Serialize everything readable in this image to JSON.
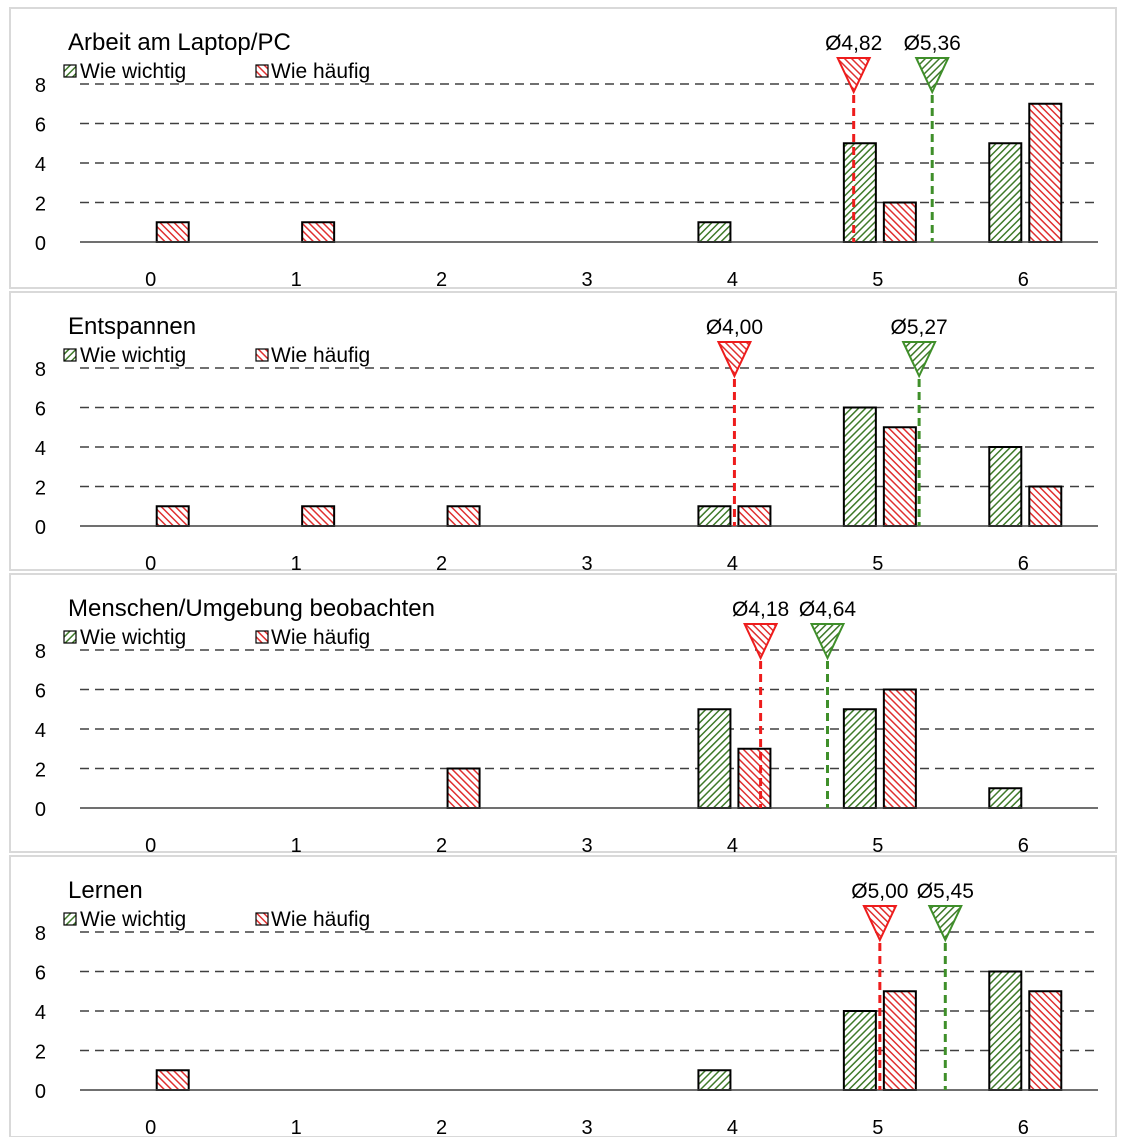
{
  "legend": {
    "wichtig_label": "Wie wichtig",
    "haeufig_label": "Wie häufig"
  },
  "colors": {
    "wichtig": "#3f7a2a",
    "haeufig": "#e03030",
    "wichtig_line": "#3f8f2a",
    "haeufig_line": "#ee1c1c",
    "grid": "#404040",
    "border": "#d9d9d9"
  },
  "chart_data": [
    {
      "type": "bar",
      "title": "Arbeit am Laptop/PC",
      "categories": [
        "0",
        "1",
        "2",
        "3",
        "4",
        "5",
        "6"
      ],
      "ylim": [
        0,
        8
      ],
      "yticks": [
        "0",
        "2",
        "4",
        "6",
        "8"
      ],
      "grid": true,
      "legend_position": "top-left",
      "series": [
        {
          "name": "Wie wichtig",
          "values": [
            0,
            0,
            0,
            0,
            1,
            5,
            5
          ]
        },
        {
          "name": "Wie häufig",
          "values": [
            1,
            1,
            0,
            0,
            0,
            2,
            7
          ]
        }
      ],
      "means": [
        {
          "series": "Wie häufig",
          "value": 4.82,
          "label": "Ø4,82"
        },
        {
          "series": "Wie wichtig",
          "value": 5.36,
          "label": "Ø5,36"
        }
      ]
    },
    {
      "type": "bar",
      "title": "Entspannen",
      "categories": [
        "0",
        "1",
        "2",
        "3",
        "4",
        "5",
        "6"
      ],
      "ylim": [
        0,
        8
      ],
      "yticks": [
        "0",
        "2",
        "4",
        "6",
        "8"
      ],
      "grid": true,
      "legend_position": "top-left",
      "series": [
        {
          "name": "Wie wichtig",
          "values": [
            0,
            0,
            0,
            0,
            1,
            6,
            4
          ]
        },
        {
          "name": "Wie häufig",
          "values": [
            1,
            1,
            1,
            0,
            1,
            5,
            2
          ]
        }
      ],
      "means": [
        {
          "series": "Wie häufig",
          "value": 4.0,
          "label": "Ø4,00"
        },
        {
          "series": "Wie wichtig",
          "value": 5.27,
          "label": "Ø5,27"
        }
      ]
    },
    {
      "type": "bar",
      "title": "Menschen/Umgebung beobachten",
      "categories": [
        "0",
        "1",
        "2",
        "3",
        "4",
        "5",
        "6"
      ],
      "ylim": [
        0,
        8
      ],
      "yticks": [
        "0",
        "2",
        "4",
        "6",
        "8"
      ],
      "grid": true,
      "legend_position": "top-left",
      "series": [
        {
          "name": "Wie wichtig",
          "values": [
            0,
            0,
            0,
            0,
            5,
            5,
            1
          ]
        },
        {
          "name": "Wie häufig",
          "values": [
            0,
            0,
            2,
            0,
            3,
            6,
            0
          ]
        }
      ],
      "means": [
        {
          "series": "Wie häufig",
          "value": 4.18,
          "label": "Ø4,18"
        },
        {
          "series": "Wie wichtig",
          "value": 4.64,
          "label": "Ø4,64"
        }
      ]
    },
    {
      "type": "bar",
      "title": "Lernen",
      "categories": [
        "0",
        "1",
        "2",
        "3",
        "4",
        "5",
        "6"
      ],
      "ylim": [
        0,
        8
      ],
      "yticks": [
        "0",
        "2",
        "4",
        "6",
        "8"
      ],
      "grid": true,
      "legend_position": "top-left",
      "series": [
        {
          "name": "Wie wichtig",
          "values": [
            0,
            0,
            0,
            0,
            1,
            4,
            6
          ]
        },
        {
          "name": "Wie häufig",
          "values": [
            1,
            0,
            0,
            0,
            0,
            5,
            5
          ]
        }
      ],
      "means": [
        {
          "series": "Wie häufig",
          "value": 5.0,
          "label": "Ø5,00"
        },
        {
          "series": "Wie wichtig",
          "value": 5.45,
          "label": "Ø5,45"
        }
      ]
    }
  ]
}
